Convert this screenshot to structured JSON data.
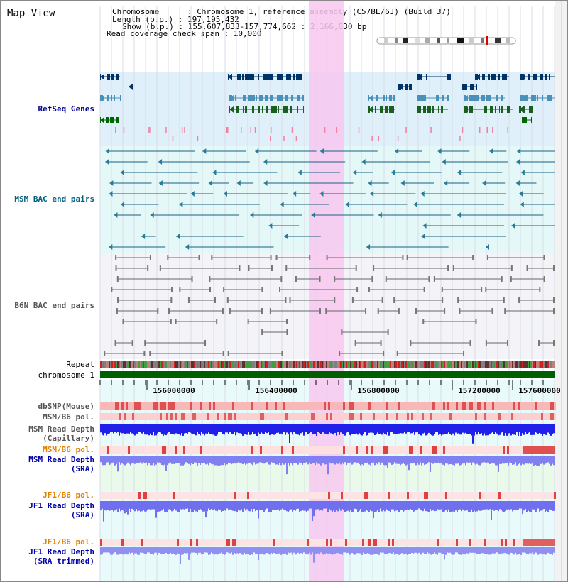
{
  "header": {
    "title": "Map View",
    "chromosome": "Chromosome      : Chromosome 1, reference assembly (C57BL/6J) (Build 37)",
    "length": "Length (b.p.) : 197,195,432",
    "show": "Show (b.p.) : 155,607,833-157,774,662 : 2,166,830 bp",
    "coverage": "Read coverage check span : 10,000"
  },
  "tracks": {
    "refseq": "RefSeq Genes",
    "msm_bac": "MSM BAC end pairs",
    "b6n_bac": "B6N BAC end pairs",
    "repeat": "Repeat",
    "chromosome": "chromosome 1",
    "dbsnp": "dbSNP(Mouse)",
    "msm_b6_pol_1": "MSM/B6 pol.",
    "msm_depth_cap_1": "MSM Read Depth",
    "msm_depth_cap_2": "(Capillary)",
    "msm_b6_pol_2": "MSM/B6 pol.",
    "msm_depth_sra_1": "MSM Read Depth",
    "msm_depth_sra_2": "(SRA)",
    "jf1_pol_1": "JF1/B6 pol.",
    "jf1_depth_sra_1": "JF1 Read Depth",
    "jf1_depth_sra_2": "(SRA)",
    "jf1_pol_2": "JF1/B6 pol.",
    "jf1_depth_trim_1": "JF1 Read Depth",
    "jf1_depth_trim_2": "(SRA trimmed)"
  },
  "axis": {
    "ticks": [
      "156000000",
      "156400000",
      "156800000",
      "157200000",
      "157600000"
    ]
  },
  "colors": {
    "refseq_label": "#00008b",
    "msm_bac_label": "#006080",
    "b6n_bac_label": "#555555",
    "pol_label_orange": "#e08000",
    "depth_label_blue": "#0000aa",
    "highlight": "#f8c8f0",
    "chromosome_bar": "#006000"
  }
}
